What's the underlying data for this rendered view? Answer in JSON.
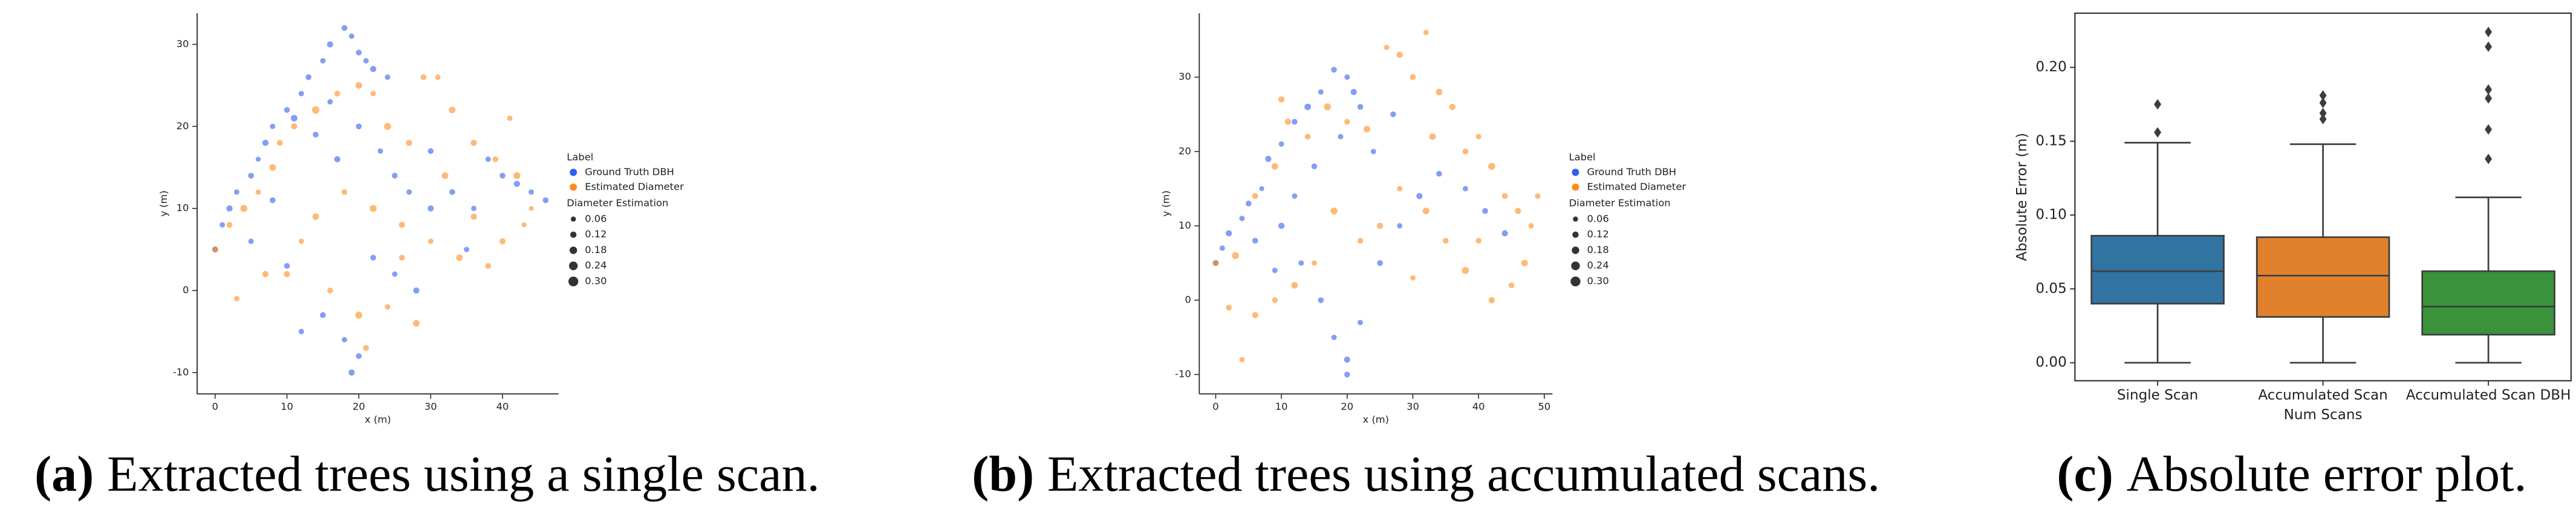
{
  "chart_data": [
    {
      "type": "scatter",
      "xlabel": "x (m)",
      "ylabel": "y (m)",
      "xlim": [
        -2.5,
        47.8
      ],
      "ylim": [
        -12.6,
        33.8
      ],
      "xticks": [
        0,
        10,
        20,
        30,
        40
      ],
      "yticks": [
        -10,
        0,
        10,
        20,
        30
      ],
      "alpha": 0.6,
      "legend_title": "Label",
      "size_title": "Diameter Estimation",
      "size_legend": [
        0.06,
        0.12,
        0.18,
        {
          "value": 0.24,
          "label": "0.24"
        },
        {
          "value": 0.3,
          "label": "0.30"
        }
      ],
      "series": [
        {
          "name": "Ground Truth DBH",
          "color": "#2f5ef0",
          "x": [
            0,
            1,
            2,
            3,
            5,
            6,
            7,
            8,
            10,
            11,
            12,
            13,
            15,
            16,
            18,
            19,
            20,
            21,
            22,
            24,
            14,
            16,
            17,
            20,
            23,
            25,
            27,
            30,
            33,
            36,
            40,
            42,
            44,
            46,
            38,
            15,
            18,
            19,
            20,
            12,
            22,
            25,
            28,
            8,
            5,
            30,
            35,
            10
          ],
          "y": [
            5,
            8,
            10,
            12,
            14,
            16,
            18,
            20,
            22,
            21,
            24,
            26,
            28,
            30,
            32,
            31,
            29,
            28,
            27,
            26,
            19,
            23,
            16,
            20,
            17,
            14,
            12,
            10,
            12,
            10,
            14,
            13,
            12,
            11,
            16,
            -3,
            -6,
            -10,
            -8,
            -5,
            4,
            2,
            0,
            11,
            6,
            17,
            5,
            3
          ],
          "sizes": [
            0.12,
            0.1,
            0.14,
            0.1,
            0.12,
            0.08,
            0.14,
            0.1,
            0.12,
            0.16,
            0.1,
            0.12,
            0.1,
            0.14,
            0.12,
            0.1,
            0.12,
            0.1,
            0.14,
            0.1,
            0.12,
            0.1,
            0.14,
            0.12,
            0.1,
            0.12,
            0.1,
            0.14,
            0.12,
            0.1,
            0.12,
            0.14,
            0.1,
            0.12,
            0.1,
            0.12,
            0.1,
            0.14,
            0.12,
            0.1,
            0.12,
            0.1,
            0.14,
            0.12,
            0.1,
            0.12,
            0.1,
            0.12
          ]
        },
        {
          "name": "Estimated Diameter",
          "color": "#ff8a1c",
          "x": [
            0,
            2,
            4,
            6,
            8,
            9,
            11,
            14,
            17,
            20,
            22,
            24,
            27,
            29,
            31,
            33,
            36,
            39,
            41,
            42,
            44,
            40,
            38,
            34,
            30,
            26,
            22,
            18,
            14,
            12,
            10,
            16,
            20,
            24,
            28,
            21,
            7,
            3,
            32,
            26,
            36,
            43
          ],
          "y": [
            5,
            8,
            10,
            12,
            15,
            18,
            20,
            22,
            24,
            25,
            24,
            20,
            18,
            26,
            26,
            22,
            18,
            16,
            21,
            14,
            10,
            6,
            3,
            4,
            6,
            8,
            10,
            12,
            9,
            6,
            2,
            0,
            -3,
            -2,
            -4,
            -7,
            2,
            -1,
            14,
            4,
            9,
            8
          ],
          "sizes": [
            0.14,
            0.12,
            0.18,
            0.1,
            0.16,
            0.12,
            0.14,
            0.2,
            0.12,
            0.16,
            0.1,
            0.18,
            0.14,
            0.12,
            0.1,
            0.16,
            0.14,
            0.12,
            0.1,
            0.18,
            0.08,
            0.14,
            0.12,
            0.16,
            0.1,
            0.14,
            0.18,
            0.12,
            0.16,
            0.1,
            0.14,
            0.12,
            0.18,
            0.1,
            0.16,
            0.12,
            0.14,
            0.1,
            0.16,
            0.12,
            0.14,
            0.08
          ]
        }
      ],
      "caption_label": "(a)",
      "caption": "Extracted trees using a single scan."
    },
    {
      "type": "scatter",
      "xlabel": "x (m)",
      "ylabel": "y (m)",
      "xlim": [
        -2.5,
        51.25
      ],
      "ylim": [
        -12.6,
        38.6
      ],
      "xticks": [
        0,
        10,
        20,
        30,
        40,
        50
      ],
      "yticks": [
        -10,
        0,
        10,
        20,
        30
      ],
      "alpha": 0.6,
      "legend_title": "Label",
      "size_title": "Diameter Estimation",
      "size_legend": [
        0.06,
        0.12,
        0.18,
        {
          "value": 0.24,
          "label": "0.24"
        },
        {
          "value": 0.3,
          "label": "0.30"
        }
      ],
      "series": [
        {
          "name": "Ground Truth DBH",
          "color": "#2f5ef0",
          "x": [
            0,
            1,
            2,
            4,
            5,
            7,
            8,
            10,
            12,
            14,
            16,
            18,
            20,
            21,
            22,
            19,
            15,
            12,
            10,
            13,
            16,
            18,
            20,
            20,
            22,
            25,
            28,
            31,
            34,
            38,
            41,
            44,
            24,
            27,
            9,
            6
          ],
          "y": [
            5,
            7,
            9,
            11,
            13,
            15,
            19,
            21,
            24,
            26,
            28,
            31,
            30,
            28,
            26,
            22,
            18,
            14,
            10,
            5,
            0,
            -5,
            -8,
            -10,
            -3,
            5,
            10,
            14,
            17,
            15,
            12,
            9,
            20,
            25,
            4,
            8
          ],
          "sizes": [
            0.12,
            0.1,
            0.14,
            0.1,
            0.12,
            0.08,
            0.14,
            0.1,
            0.12,
            0.16,
            0.1,
            0.12,
            0.1,
            0.14,
            0.12,
            0.1,
            0.12,
            0.1,
            0.14,
            0.1,
            0.12,
            0.1,
            0.14,
            0.12,
            0.1,
            0.12,
            0.1,
            0.14,
            0.12,
            0.1,
            0.12,
            0.14,
            0.1,
            0.12,
            0.1,
            0.12
          ]
        },
        {
          "name": "Estimated Diameter",
          "color": "#ff8a1c",
          "x": [
            0,
            2,
            4,
            3,
            6,
            9,
            11,
            14,
            17,
            20,
            23,
            26,
            28,
            30,
            32,
            34,
            36,
            38,
            40,
            42,
            44,
            46,
            48,
            47,
            45,
            42,
            38,
            35,
            32,
            28,
            25,
            22,
            18,
            15,
            12,
            9,
            6,
            30,
            40,
            49,
            10,
            33
          ],
          "y": [
            5,
            -1,
            -8,
            6,
            14,
            18,
            24,
            22,
            26,
            24,
            23,
            34,
            33,
            30,
            36,
            28,
            26,
            20,
            22,
            18,
            14,
            12,
            10,
            5,
            2,
            0,
            4,
            8,
            12,
            15,
            10,
            8,
            12,
            5,
            2,
            0,
            -2,
            3,
            8,
            14,
            27,
            22
          ],
          "sizes": [
            0.14,
            0.12,
            0.1,
            0.18,
            0.12,
            0.16,
            0.14,
            0.12,
            0.18,
            0.12,
            0.16,
            0.1,
            0.14,
            0.12,
            0.1,
            0.16,
            0.14,
            0.12,
            0.1,
            0.18,
            0.12,
            0.14,
            0.1,
            0.16,
            0.12,
            0.14,
            0.18,
            0.12,
            0.16,
            0.1,
            0.14,
            0.12,
            0.18,
            0.1,
            0.16,
            0.12,
            0.14,
            0.1,
            0.12,
            0.1,
            0.14,
            0.16
          ]
        }
      ],
      "caption_label": "(b)",
      "caption": "Extracted trees using accumulated scans."
    },
    {
      "type": "box",
      "xlabel": "Num Scans",
      "ylabel": "Absolute Error (m)",
      "ylim": [
        -0.0122,
        0.2367
      ],
      "yticks": [
        {
          "value": 0,
          "label": "0.00"
        },
        0.05,
        {
          "value": 0.1,
          "label": "0.10"
        },
        0.15,
        {
          "value": 0.2,
          "label": "0.20"
        }
      ],
      "categories": [
        "Single Scan",
        "Accumulated Scan",
        "Accumulated Scan DBH"
      ],
      "colors": [
        "#3274a1",
        "#e1812c",
        "#3a923a"
      ],
      "boxes": [
        {
          "whislo": 0.0,
          "q1": 0.04,
          "median": 0.062,
          "q3": 0.086,
          "whishi": 0.149,
          "fliers": [
            0.156,
            0.175
          ]
        },
        {
          "whislo": 0.0,
          "q1": 0.031,
          "median": 0.059,
          "q3": 0.085,
          "whishi": 0.148,
          "fliers": [
            0.165,
            0.169,
            0.176,
            0.181
          ]
        },
        {
          "whislo": 0.0,
          "q1": 0.019,
          "median": 0.038,
          "q3": 0.062,
          "whishi": 0.112,
          "fliers": [
            0.138,
            0.158,
            0.179,
            0.185,
            0.214,
            0.224
          ]
        }
      ],
      "caption_label": "(c)",
      "caption": "Absolute error plot."
    }
  ]
}
